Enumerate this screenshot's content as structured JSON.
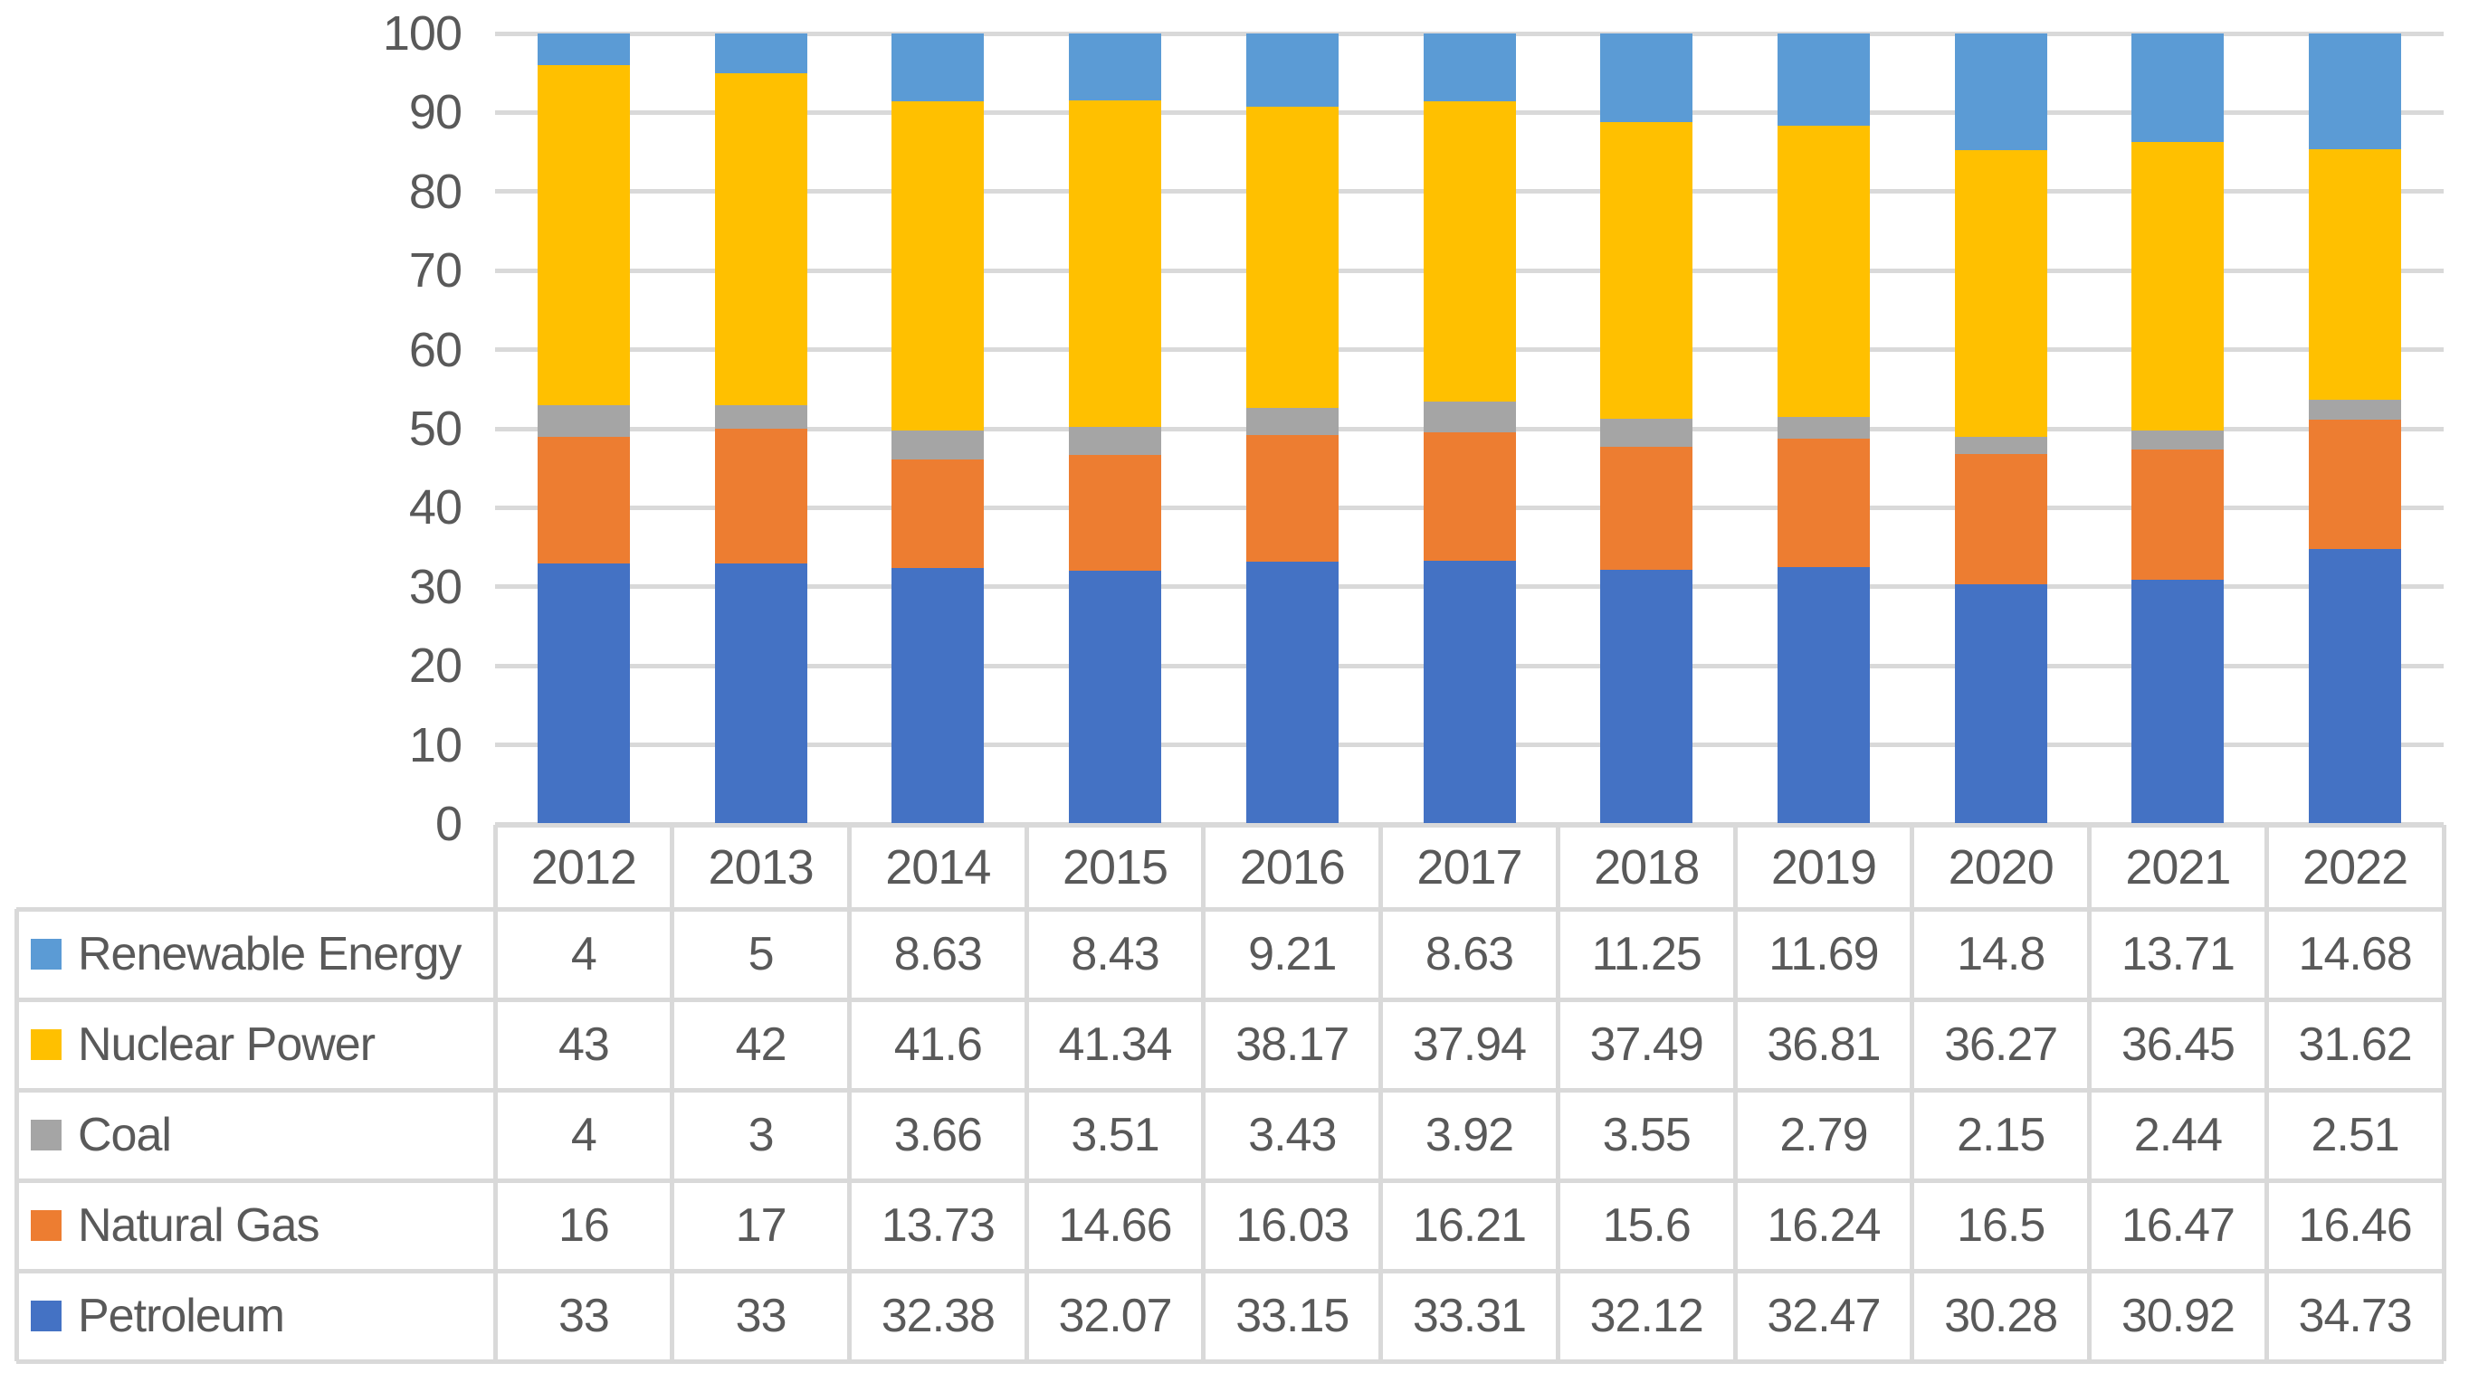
{
  "chart_data": {
    "type": "bar",
    "stacked": true,
    "title": "",
    "xlabel": "",
    "ylabel": "",
    "categories": [
      "2012",
      "2013",
      "2014",
      "2015",
      "2016",
      "2017",
      "2018",
      "2019",
      "2020",
      "2021",
      "2022"
    ],
    "series": [
      {
        "name": "Renewable Energy",
        "color": "#5B9BD5",
        "values": [
          4,
          5,
          8.63,
          8.43,
          9.21,
          8.63,
          11.25,
          11.69,
          14.8,
          13.71,
          14.68
        ]
      },
      {
        "name": "Nuclear Power",
        "color": "#FFC000",
        "values": [
          43,
          42,
          41.6,
          41.34,
          38.17,
          37.94,
          37.49,
          36.81,
          36.27,
          36.45,
          31.62
        ]
      },
      {
        "name": "Coal",
        "color": "#A5A5A5",
        "values": [
          4,
          3,
          3.66,
          3.51,
          3.43,
          3.92,
          3.55,
          2.79,
          2.15,
          2.44,
          2.51
        ]
      },
      {
        "name": "Natural Gas",
        "color": "#ED7D31",
        "values": [
          16,
          17,
          13.73,
          14.66,
          16.03,
          16.21,
          15.6,
          16.24,
          16.5,
          16.47,
          16.46
        ]
      },
      {
        "name": "Petroleum",
        "color": "#4472C4",
        "values": [
          33,
          33,
          32.38,
          32.07,
          33.15,
          33.31,
          32.12,
          32.47,
          30.28,
          30.92,
          34.73
        ]
      }
    ],
    "stack_order_bottom_to_top": [
      "Petroleum",
      "Natural Gas",
      "Coal",
      "Nuclear Power",
      "Renewable Energy"
    ],
    "ylim": [
      0,
      100
    ],
    "yticks": [
      "100",
      "90",
      "80",
      "70",
      "60",
      "50",
      "40",
      "30",
      "20",
      "10",
      "0"
    ],
    "grid": true,
    "gridline_color": "#D9D9D9",
    "axis_text_color": "#595959",
    "legend_position": "data-table-left"
  },
  "table": {
    "year_header": [
      "2012",
      "2013",
      "2014",
      "2015",
      "2016",
      "2017",
      "2018",
      "2019",
      "2020",
      "2021",
      "2022"
    ],
    "rows": [
      {
        "label": "Renewable Energy",
        "color": "#5B9BD5",
        "cells": [
          "4",
          "5",
          "8.63",
          "8.43",
          "9.21",
          "8.63",
          "11.25",
          "11.69",
          "14.8",
          "13.71",
          "14.68"
        ]
      },
      {
        "label": "Nuclear Power",
        "color": "#FFC000",
        "cells": [
          "43",
          "42",
          "41.6",
          "41.34",
          "38.17",
          "37.94",
          "37.49",
          "36.81",
          "36.27",
          "36.45",
          "31.62"
        ]
      },
      {
        "label": "Coal",
        "color": "#A5A5A5",
        "cells": [
          "4",
          "3",
          "3.66",
          "3.51",
          "3.43",
          "3.92",
          "3.55",
          "2.79",
          "2.15",
          "2.44",
          "2.51"
        ]
      },
      {
        "label": "Natural Gas",
        "color": "#ED7D31",
        "cells": [
          "16",
          "17",
          "13.73",
          "14.66",
          "16.03",
          "16.21",
          "15.6",
          "16.24",
          "16.5",
          "16.47",
          "16.46"
        ]
      },
      {
        "label": "Petroleum",
        "color": "#4472C4",
        "cells": [
          "33",
          "33",
          "32.38",
          "32.07",
          "33.15",
          "33.31",
          "32.12",
          "32.47",
          "30.28",
          "30.92",
          "34.73"
        ]
      }
    ],
    "border_color": "#D9D9D9",
    "text_color": "#595959"
  }
}
